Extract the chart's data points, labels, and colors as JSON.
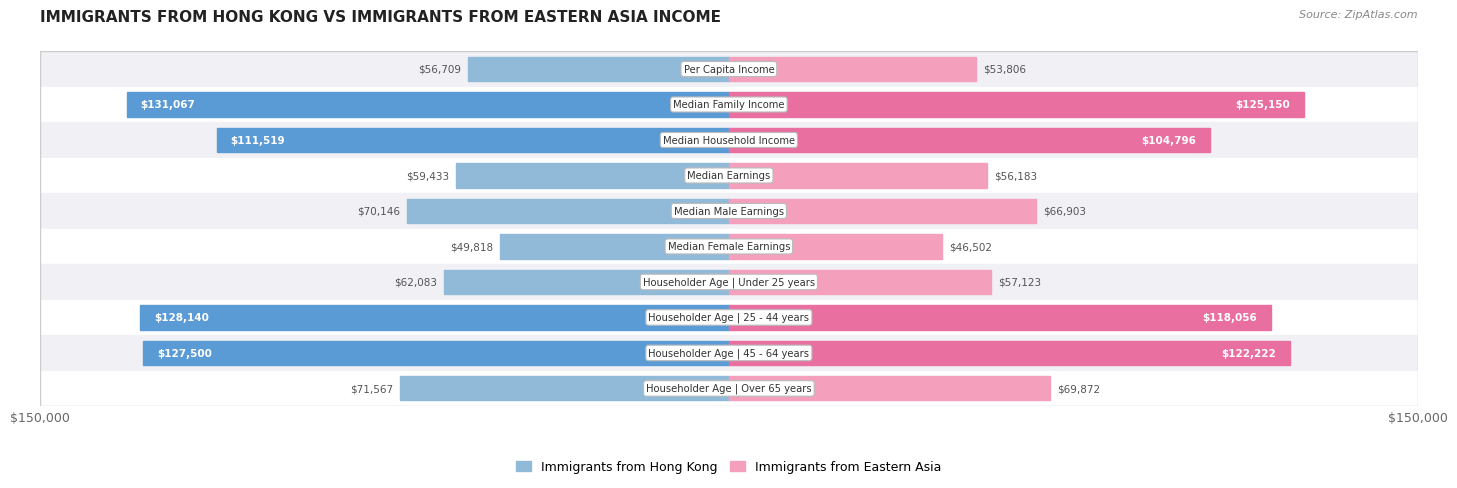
{
  "title": "IMMIGRANTS FROM HONG KONG VS IMMIGRANTS FROM EASTERN ASIA INCOME",
  "source": "Source: ZipAtlas.com",
  "categories": [
    "Per Capita Income",
    "Median Family Income",
    "Median Household Income",
    "Median Earnings",
    "Median Male Earnings",
    "Median Female Earnings",
    "Householder Age | Under 25 years",
    "Householder Age | 25 - 44 years",
    "Householder Age | 45 - 64 years",
    "Householder Age | Over 65 years"
  ],
  "hk_values": [
    56709,
    131067,
    111519,
    59433,
    70146,
    49818,
    62083,
    128140,
    127500,
    71567
  ],
  "ea_values": [
    53806,
    125150,
    104796,
    56183,
    66903,
    46502,
    57123,
    118056,
    122222,
    69872
  ],
  "hk_labels": [
    "$56,709",
    "$131,067",
    "$111,519",
    "$59,433",
    "$70,146",
    "$49,818",
    "$62,083",
    "$128,140",
    "$127,500",
    "$71,567"
  ],
  "ea_labels": [
    "$53,806",
    "$125,150",
    "$104,796",
    "$56,183",
    "$66,903",
    "$46,502",
    "$57,123",
    "$118,056",
    "$122,222",
    "$69,872"
  ],
  "hk_color": "#91b9d8",
  "ea_color": "#f4a0bc",
  "hk_color_strong": "#5b9bd5",
  "ea_color_strong": "#e96fa0",
  "hk_legend": "Immigrants from Hong Kong",
  "ea_legend": "Immigrants from Eastern Asia",
  "max_value": 150000,
  "row_colors": [
    "#f0f0f5",
    "#ffffff",
    "#f0f0f5",
    "#ffffff",
    "#f0f0f5",
    "#ffffff",
    "#f0f0f5",
    "#ffffff",
    "#f0f0f5",
    "#ffffff"
  ],
  "hk_inside_threshold": 80000,
  "ea_inside_threshold": 80000
}
